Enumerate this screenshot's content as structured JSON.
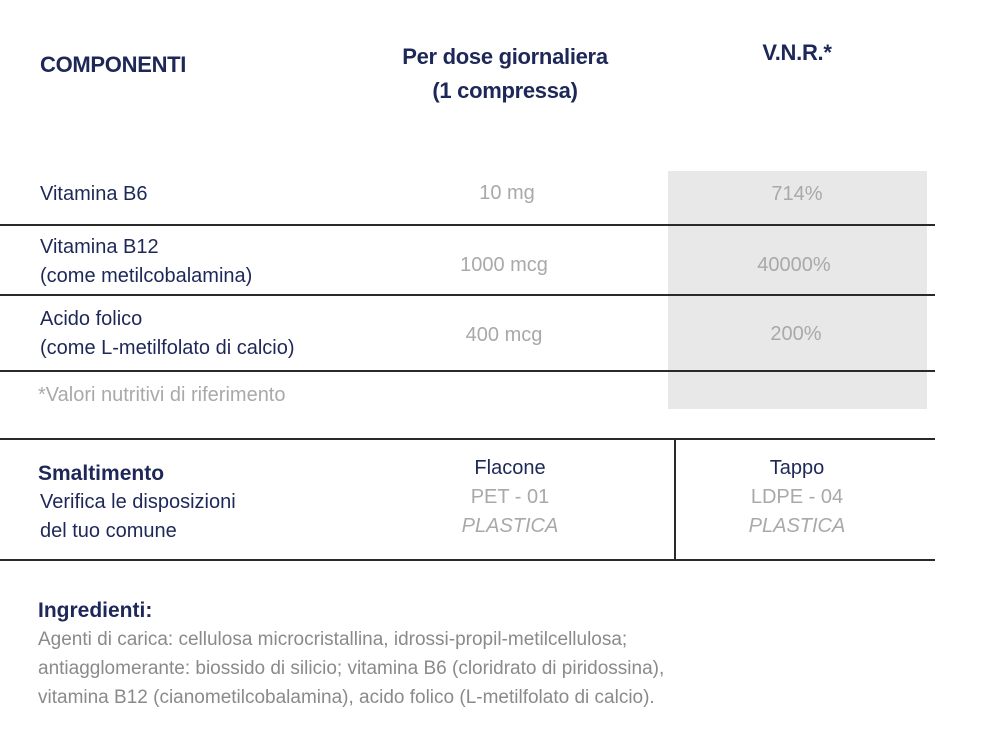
{
  "header": {
    "components": "COMPONENTI",
    "dose_line1": "Per dose giornaliera",
    "dose_line2": "(1  compressa)",
    "vnr": "V.N.R.*"
  },
  "rows": [
    {
      "name_line1": "Vitamina B6",
      "name_line2": "",
      "dose": "10 mg",
      "vnr": "714%"
    },
    {
      "name_line1": "Vitamina B12",
      "name_line2": "(come metilcobalamina)",
      "dose": "1000 mcg",
      "vnr": "40000%"
    },
    {
      "name_line1": "Acido folico",
      "name_line2": "(come L-metilfolato di calcio)",
      "dose": "400 mcg",
      "vnr": "200%"
    }
  ],
  "footnote": "*Valori nutritivi di riferimento",
  "disposal": {
    "title": "Smaltimento",
    "line1": "Verifica le disposizioni",
    "line2": "del tuo comune",
    "bottle": {
      "label": "Flacone",
      "code": "PET - 01",
      "material": "PLASTICA"
    },
    "cap": {
      "label": "Tappo",
      "code": "LDPE - 04",
      "material": "PLASTICA"
    }
  },
  "ingredients": {
    "title": "Ingredienti:",
    "line1": "Agenti di carica: cellulosa microcristallina, idrossi-propil-metilcellulosa;",
    "line2": "antiagglomerante: biossido di silicio; vitamina B6 (cloridrato di piridossina),",
    "line3": "vitamina B12 (cianometilcobalamina), acido folico (L-metilfolato di calcio)."
  },
  "colors": {
    "navy": "#1e2858",
    "gray_text": "#a9a9a9",
    "shade": "#e8e8e8"
  }
}
